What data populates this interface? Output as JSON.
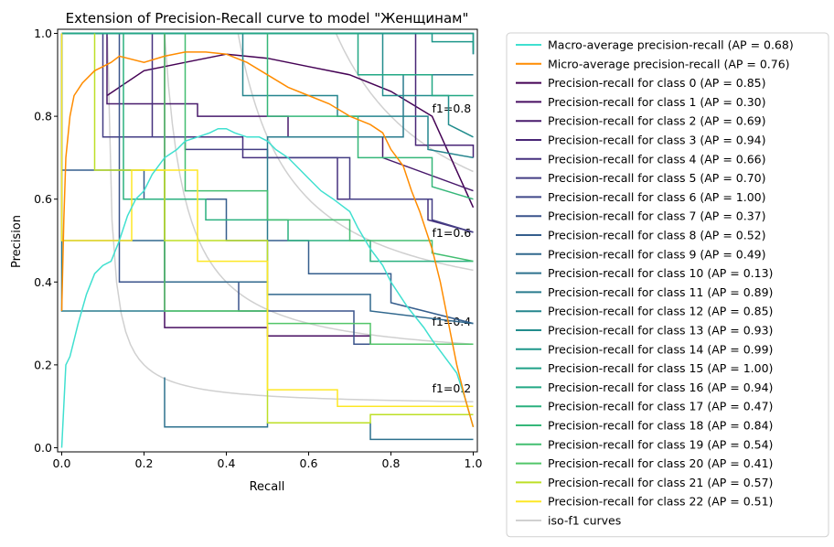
{
  "chart_data": {
    "type": "line",
    "title": "Extension of Precision-Recall curve to model \"Женщинам\"",
    "xlabel": "Recall",
    "ylabel": "Precision",
    "xlim": [
      -0.01,
      1.01
    ],
    "ylim": [
      -0.01,
      1.01
    ],
    "xticks": [
      "0.0",
      "0.2",
      "0.4",
      "0.6",
      "0.8",
      "1.0"
    ],
    "yticks": [
      "0.0",
      "0.2",
      "0.4",
      "0.6",
      "0.8",
      "1.0"
    ],
    "legend_position": "outside-right",
    "iso_f1_labels": [
      {
        "text": "f1=0.2",
        "f": 0.2
      },
      {
        "text": "f1=0.4",
        "f": 0.4
      },
      {
        "text": "f1=0.6",
        "f": 0.6
      },
      {
        "text": "f1=0.8",
        "f": 0.8
      }
    ],
    "series": [
      {
        "name": "Macro-average precision-recall (AP = 0.68)",
        "color": "#40e0d0",
        "x": [
          0,
          0.01,
          0.02,
          0.04,
          0.06,
          0.08,
          0.1,
          0.12,
          0.14,
          0.16,
          0.18,
          0.2,
          0.22,
          0.25,
          0.28,
          0.3,
          0.33,
          0.36,
          0.38,
          0.4,
          0.42,
          0.45,
          0.48,
          0.5,
          0.52,
          0.55,
          0.58,
          0.6,
          0.63,
          0.66,
          0.7,
          0.72,
          0.75,
          0.78,
          0.8,
          0.84,
          0.88,
          0.9,
          0.93,
          0.96,
          0.98,
          1.0
        ],
        "y": [
          0,
          0.2,
          0.22,
          0.3,
          0.37,
          0.42,
          0.44,
          0.45,
          0.5,
          0.56,
          0.6,
          0.62,
          0.66,
          0.7,
          0.72,
          0.74,
          0.75,
          0.76,
          0.77,
          0.77,
          0.76,
          0.75,
          0.75,
          0.74,
          0.72,
          0.7,
          0.67,
          0.65,
          0.62,
          0.6,
          0.57,
          0.53,
          0.48,
          0.44,
          0.4,
          0.34,
          0.29,
          0.26,
          0.22,
          0.18,
          0.12,
          0.05
        ]
      },
      {
        "name": "Micro-average precision-recall (AP = 0.76)",
        "color": "#ff8c00",
        "x": [
          0,
          0.005,
          0.01,
          0.02,
          0.03,
          0.05,
          0.08,
          0.1,
          0.12,
          0.14,
          0.2,
          0.25,
          0.3,
          0.35,
          0.4,
          0.45,
          0.5,
          0.55,
          0.6,
          0.65,
          0.7,
          0.75,
          0.78,
          0.8,
          0.83,
          0.85,
          0.87,
          0.9,
          0.92,
          0.94,
          0.96,
          0.98,
          1.0
        ],
        "y": [
          0.33,
          0.55,
          0.7,
          0.8,
          0.85,
          0.88,
          0.91,
          0.92,
          0.93,
          0.945,
          0.93,
          0.945,
          0.955,
          0.955,
          0.95,
          0.93,
          0.9,
          0.87,
          0.85,
          0.83,
          0.8,
          0.78,
          0.76,
          0.72,
          0.68,
          0.62,
          0.57,
          0.48,
          0.4,
          0.3,
          0.2,
          0.12,
          0.05
        ]
      },
      {
        "name": "Precision-recall for class 0 (AP = 0.85)",
        "color": "#440154",
        "x": [
          0.11,
          0.2,
          0.3,
          0.4,
          0.5,
          0.6,
          0.7,
          0.8,
          0.9,
          1.0
        ],
        "y": [
          0.85,
          0.91,
          0.93,
          0.95,
          0.94,
          0.92,
          0.9,
          0.86,
          0.8,
          0.58
        ]
      },
      {
        "name": "Precision-recall for class 1 (AP = 0.30)",
        "color": "#470e61",
        "x": [
          0.25,
          0.25,
          0.5,
          0.5,
          0.75,
          0.75,
          1.0
        ],
        "y": [
          1.0,
          0.29,
          0.29,
          0.27,
          0.27,
          0.25,
          0.25
        ]
      },
      {
        "name": "Precision-recall for class 2 (AP = 0.69)",
        "color": "#481a6c",
        "x": [
          0.11,
          0.11,
          0.33,
          0.33,
          0.55,
          0.55,
          0.78,
          0.78,
          1.0
        ],
        "y": [
          1.0,
          0.83,
          0.83,
          0.8,
          0.8,
          0.75,
          0.75,
          0.7,
          0.62
        ]
      },
      {
        "name": "Precision-recall for class 3 (AP = 0.94)",
        "color": "#482576",
        "x": [
          0.0,
          0.86,
          0.86,
          1.0,
          1.0
        ],
        "y": [
          1.0,
          1.0,
          0.73,
          0.73,
          0.7
        ]
      },
      {
        "name": "Precision-recall for class 4 (AP = 0.66)",
        "color": "#46307e",
        "x": [
          0.22,
          0.22,
          0.44,
          0.44,
          0.67,
          0.67,
          0.89,
          0.89,
          1.0
        ],
        "y": [
          1.0,
          0.75,
          0.75,
          0.7,
          0.7,
          0.6,
          0.6,
          0.55,
          0.52
        ]
      },
      {
        "name": "Precision-recall for class 5 (AP = 0.70)",
        "color": "#433d84",
        "x": [
          0.1,
          0.1,
          0.3,
          0.3,
          0.5,
          0.5,
          0.7,
          0.7,
          0.9,
          0.9,
          1.0
        ],
        "y": [
          1.0,
          0.75,
          0.75,
          0.72,
          0.72,
          0.7,
          0.7,
          0.6,
          0.6,
          0.55,
          0.52
        ]
      },
      {
        "name": "Precision-recall for class 6 (AP = 1.00)",
        "color": "#3f4889",
        "x": [
          0.0,
          1.0,
          1.0
        ],
        "y": [
          1.0,
          1.0,
          0.95
        ]
      },
      {
        "name": "Precision-recall for class 7 (AP = 0.37)",
        "color": "#3a538b",
        "x": [
          0.14,
          0.14,
          0.43,
          0.43,
          0.71,
          0.71,
          1.0
        ],
        "y": [
          1.0,
          0.4,
          0.4,
          0.33,
          0.33,
          0.25,
          0.25
        ]
      },
      {
        "name": "Precision-recall for class 8 (AP = 0.52)",
        "color": "#355e8d",
        "x": [
          0.0,
          0.0,
          0.2,
          0.2,
          0.4,
          0.4,
          0.6,
          0.6,
          0.8,
          0.8,
          1.0
        ],
        "y": [
          1.0,
          0.67,
          0.67,
          0.6,
          0.6,
          0.5,
          0.5,
          0.42,
          0.42,
          0.35,
          0.3
        ]
      },
      {
        "name": "Precision-recall for class 9 (AP = 0.49)",
        "color": "#31688e",
        "x": [
          0.0,
          0.0,
          0.25,
          0.25,
          0.5,
          0.5,
          0.75,
          0.75,
          1.0
        ],
        "y": [
          1.0,
          0.5,
          0.5,
          0.4,
          0.4,
          0.37,
          0.37,
          0.33,
          0.3
        ]
      },
      {
        "name": "Precision-recall for class 10 (AP = 0.13)",
        "color": "#2d718e",
        "x": [
          0.25,
          0.25,
          0.5,
          0.5,
          0.75,
          0.75,
          1.0
        ],
        "y": [
          0.17,
          0.05,
          0.05,
          0.06,
          0.06,
          0.02,
          0.02
        ]
      },
      {
        "name": "Precision-recall for class 11 (AP = 0.89)",
        "color": "#297b8e",
        "x": [
          0.0,
          0.0,
          0.5,
          0.5,
          0.83,
          0.83,
          1.0
        ],
        "y": [
          1.0,
          0.33,
          0.33,
          0.75,
          0.75,
          0.9,
          0.9
        ]
      },
      {
        "name": "Precision-recall for class 12 (AP = 0.85)",
        "color": "#25858e",
        "x": [
          0.44,
          0.44,
          0.67,
          0.67,
          0.89,
          0.89,
          1.0
        ],
        "y": [
          1.0,
          0.85,
          0.85,
          0.8,
          0.8,
          0.72,
          0.7
        ]
      },
      {
        "name": "Precision-recall for class 13 (AP = 0.93)",
        "color": "#228d8d",
        "x": [
          0.0,
          0.78,
          0.78,
          0.94,
          0.94,
          1.0
        ],
        "y": [
          1.0,
          1.0,
          0.85,
          0.85,
          0.78,
          0.75
        ]
      },
      {
        "name": "Precision-recall for class 14 (AP = 0.99)",
        "color": "#1f978b",
        "x": [
          0.0,
          0.9,
          0.9,
          1.0,
          1.0
        ],
        "y": [
          1.0,
          1.0,
          0.98,
          0.98,
          0.95
        ]
      },
      {
        "name": "Precision-recall for class 15 (AP = 1.00)",
        "color": "#1fa088",
        "x": [
          0.0,
          1.0,
          1.0
        ],
        "y": [
          1.0,
          1.0,
          0.96
        ]
      },
      {
        "name": "Precision-recall for class 16 (AP = 0.94)",
        "color": "#22a884",
        "x": [
          0.0,
          0.72,
          0.72,
          0.9,
          0.9,
          1.0
        ],
        "y": [
          1.0,
          1.0,
          0.9,
          0.9,
          0.85,
          0.85
        ]
      },
      {
        "name": "Precision-recall for class 17 (AP = 0.47)",
        "color": "#2ab07f",
        "x": [
          0.15,
          0.15,
          0.35,
          0.35,
          0.55,
          0.55,
          0.75,
          0.75,
          1.0
        ],
        "y": [
          1.0,
          0.6,
          0.6,
          0.55,
          0.55,
          0.5,
          0.5,
          0.45,
          0.45
        ]
      },
      {
        "name": "Precision-recall for class 18 (AP = 0.84)",
        "color": "#35b779",
        "x": [
          0.5,
          0.5,
          0.72,
          0.72,
          0.9,
          0.9,
          1.0
        ],
        "y": [
          1.0,
          0.8,
          0.8,
          0.7,
          0.7,
          0.63,
          0.6
        ]
      },
      {
        "name": "Precision-recall for class 19 (AP = 0.54)",
        "color": "#42be71",
        "x": [
          0.3,
          0.3,
          0.5,
          0.5,
          0.7,
          0.7,
          0.9,
          0.9,
          1.0
        ],
        "y": [
          1.0,
          0.62,
          0.62,
          0.55,
          0.55,
          0.5,
          0.5,
          0.47,
          0.45
        ]
      },
      {
        "name": "Precision-recall for class 20 (AP = 0.41)",
        "color": "#52c569",
        "x": [
          0.25,
          0.25,
          0.5,
          0.5,
          0.75,
          0.75,
          1.0
        ],
        "y": [
          1.0,
          0.33,
          0.33,
          0.3,
          0.3,
          0.25,
          0.25
        ]
      },
      {
        "name": "Precision-recall for class 21 (AP = 0.57)",
        "color": "#bddf26",
        "x": [
          0.08,
          0.08,
          0.25,
          0.25,
          0.5,
          0.5,
          0.75,
          0.75,
          1.0
        ],
        "y": [
          1.0,
          0.67,
          0.67,
          0.5,
          0.5,
          0.06,
          0.06,
          0.08,
          0.08
        ]
      },
      {
        "name": "Precision-recall for class 22 (AP = 0.51)",
        "color": "#fde725",
        "x": [
          0.0,
          0.0,
          0.17,
          0.17,
          0.33,
          0.33,
          0.5,
          0.5,
          0.67,
          0.67,
          1.0
        ],
        "y": [
          1.0,
          0.5,
          0.5,
          0.67,
          0.67,
          0.45,
          0.45,
          0.14,
          0.14,
          0.1,
          0.1
        ]
      },
      {
        "name": "iso-f1 curves",
        "color": "#d0d0d0",
        "iso": true,
        "x": [],
        "y": []
      }
    ]
  }
}
